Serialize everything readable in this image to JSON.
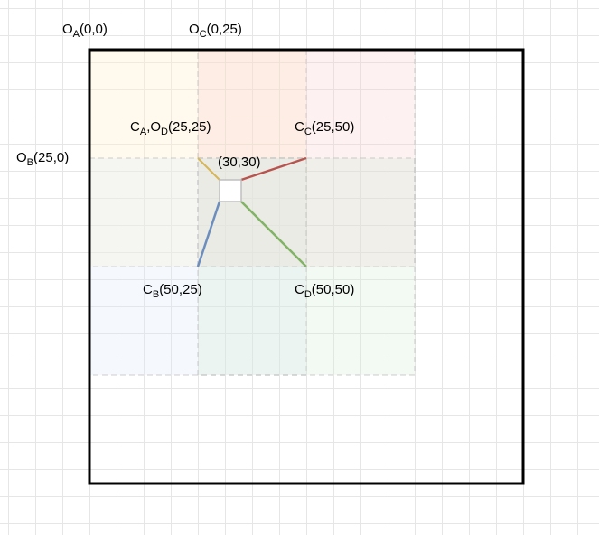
{
  "colors": {
    "grid": "#e6e6e6",
    "outline": "#000000",
    "region_a": "#fff2cc",
    "region_b": "#dae8fc",
    "region_c": "#f8cecc",
    "region_d": "#d5e8d4",
    "center_top": "#ffe6cc",
    "line_a": "#d6b656",
    "line_b": "#6c8ebf",
    "line_c": "#b85450",
    "line_d": "#82b366"
  },
  "labels": {
    "origin_a": {
      "main": "O",
      "sub": "A",
      "rest": "(0,0)"
    },
    "origin_c": {
      "main": "O",
      "sub": "C",
      "rest": "(0,25)"
    },
    "origin_b": {
      "main": "O",
      "sub": "B",
      "rest": "(25,0)"
    },
    "corner_a_origin_d": {
      "main1": "C",
      "sub1": "A",
      "mid": ",O",
      "sub2": "D",
      "rest": "(25,25)"
    },
    "corner_c": {
      "main": "C",
      "sub": "C",
      "rest": "(25,50)"
    },
    "corner_b": {
      "main": "C",
      "sub": "B",
      "rest": "(50,25)"
    },
    "corner_d": {
      "main": "C",
      "sub": "D",
      "rest": "(50,50)"
    },
    "point": "(30,30)"
  }
}
